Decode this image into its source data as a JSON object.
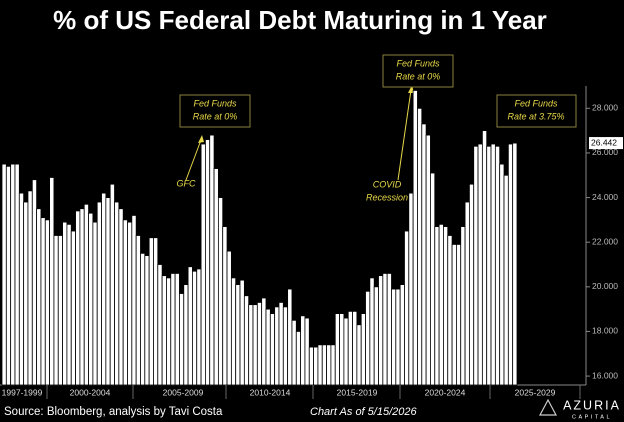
{
  "chart_data": {
    "type": "bar",
    "title": "% of US Federal Debt Maturing in 1 Year",
    "categories": [
      null,
      null,
      null,
      null,
      null,
      null,
      null,
      null,
      null,
      null,
      null,
      null,
      null,
      null,
      null,
      null,
      null,
      null,
      null,
      null,
      null,
      null,
      null,
      null,
      null,
      null,
      null,
      null,
      null,
      null,
      null,
      null,
      null,
      null,
      null,
      null,
      null,
      null,
      null,
      null,
      null,
      null,
      null,
      null,
      null,
      null,
      null,
      null,
      null,
      null,
      null,
      null,
      null,
      null,
      null,
      null,
      null,
      null,
      null,
      null,
      null,
      null,
      null,
      null,
      null,
      null,
      null,
      null,
      null,
      null,
      null,
      null,
      null,
      null,
      null,
      null,
      null,
      null,
      null,
      null,
      null,
      null,
      null,
      null,
      null,
      null,
      null,
      null,
      null,
      null,
      null,
      null,
      null,
      null,
      null,
      null,
      null,
      null,
      null,
      null,
      null,
      null,
      null,
      null,
      null,
      null,
      null,
      null,
      null,
      null,
      null,
      null,
      null,
      null,
      null,
      null,
      null,
      null,
      null
    ],
    "values": [
      25.5,
      25.4,
      25.5,
      25.5,
      24.2,
      23.8,
      24.3,
      24.8,
      23.5,
      23.1,
      23.0,
      24.9,
      22.3,
      22.3,
      22.9,
      22.8,
      22.5,
      23.4,
      23.5,
      23.7,
      23.3,
      22.9,
      23.8,
      24.2,
      24.0,
      24.6,
      23.8,
      23.5,
      23.0,
      22.9,
      23.2,
      22.3,
      21.5,
      21.4,
      22.2,
      22.2,
      21.0,
      20.5,
      20.4,
      20.6,
      20.6,
      19.7,
      20.1,
      20.9,
      20.7,
      20.8,
      26.4,
      26.6,
      26.8,
      25.3,
      24.0,
      22.7,
      21.6,
      20.4,
      20.1,
      20.3,
      19.6,
      19.2,
      19.2,
      19.3,
      19.5,
      19.0,
      18.8,
      19.1,
      19.3,
      19.1,
      19.9,
      18.5,
      18.0,
      18.7,
      18.6,
      17.3,
      17.3,
      17.4,
      17.4,
      17.4,
      17.4,
      18.8,
      18.8,
      18.6,
      18.9,
      18.9,
      18.3,
      18.8,
      19.8,
      20.4,
      20.0,
      20.5,
      20.6,
      20.6,
      19.9,
      19.9,
      20.1,
      22.5,
      24.2,
      28.8,
      28.0,
      27.3,
      26.8,
      25.1,
      22.7,
      22.8,
      22.7,
      22.3,
      21.9,
      21.9,
      22.7,
      23.8,
      24.6,
      26.3,
      26.4,
      27.0,
      26.3,
      26.4,
      26.3,
      25.5,
      25.0,
      26.4,
      26.442
    ],
    "color": "#ffffff",
    "ylim": [
      15.6,
      29.0
    ],
    "yticks": [
      {
        "value": 16,
        "label": "16.000"
      },
      {
        "value": 18,
        "label": "18.000"
      },
      {
        "value": 20,
        "label": "20.000"
      },
      {
        "value": 22,
        "label": "22.000"
      },
      {
        "value": 24,
        "label": "24.000"
      },
      {
        "value": 26,
        "label": "26.000"
      },
      {
        "value": 28,
        "label": "28.000"
      }
    ],
    "period_labels": [
      "1997-1999",
      "2000-2004",
      "2005-2009",
      "2010-2014",
      "2015-2019",
      "2020-2024",
      "2025-2029"
    ],
    "annotations": [
      {
        "lines": [
          "Fed Funds",
          "Rate at 0%"
        ]
      },
      {
        "lines": [
          "GFC"
        ]
      },
      {
        "lines": [
          "COVID",
          "Recession"
        ]
      },
      {
        "lines": [
          "Fed Funds",
          "Rate at 0%"
        ]
      },
      {
        "lines": [
          "Fed Funds",
          "Rate at 3.75%"
        ]
      }
    ],
    "source": "Source: Bloomberg, analysis by Tavi Costa",
    "as_of": "Chart As of 5/15/2026"
  },
  "logo": {
    "name": "AZURIA",
    "sub": "CAPITAL"
  }
}
